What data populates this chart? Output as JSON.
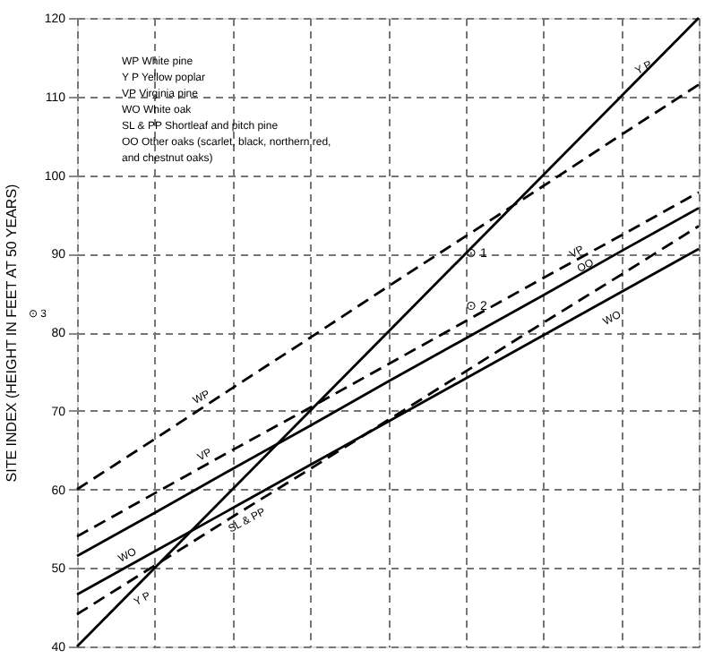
{
  "chart_data": {
    "type": "line",
    "ylabel": "SITE INDEX (HEIGHT IN FEET AT 50 YEARS)",
    "categories": [
      null,
      null,
      null,
      null,
      null,
      null,
      null,
      null,
      null
    ],
    "ylim": [
      40,
      120
    ],
    "yticks": [
      40,
      50,
      60,
      70,
      80,
      90,
      100,
      110,
      120
    ],
    "tick_labels": "y",
    "grid": true,
    "marker": "none",
    "series": [
      {
        "name": "WP",
        "color": "#000000",
        "line_style": "dashed",
        "values": [
          60,
          66.4,
          72.9,
          79.3,
          85.8,
          92.2,
          98.6,
          105.1,
          111.5
        ]
      },
      {
        "name": "Y P",
        "color": "#000000",
        "line_style": "solid",
        "values": [
          40,
          50,
          60,
          70,
          80,
          90,
          100,
          110,
          120
        ]
      },
      {
        "name": "VP",
        "color": "#000000",
        "line_style": "dashed",
        "values": [
          54,
          59.5,
          65,
          70.4,
          75.9,
          81.4,
          86.9,
          92.3,
          97.8
        ]
      },
      {
        "name": "OO",
        "color": "#000000",
        "line_style": "solid",
        "values": [
          51.5,
          57,
          62.6,
          68.1,
          73.7,
          79.2,
          84.7,
          90.3,
          95.8
        ]
      },
      {
        "name": "SL & PP",
        "color": "#000000",
        "line_style": "dashed",
        "values": [
          44.1,
          50.3,
          56.5,
          62.6,
          68.8,
          75,
          81.2,
          87.3,
          93.5
        ]
      },
      {
        "name": "WO",
        "color": "#000000",
        "line_style": "solid",
        "values": [
          46.6,
          52.1,
          57.6,
          63.1,
          68.6,
          74.1,
          79.6,
          85.1,
          90.6
        ]
      }
    ],
    "annotations": [
      "WP   White pine",
      "Y P   Yellow poplar",
      "VP   Virginia pine",
      "WO   White oak",
      "SL & PP   Shortleaf and pitch pine",
      "OO   Other oaks (scarlet, black, northern red, and chestnut oaks)",
      {
        "text": "⊙ 1",
        "y": 90
      },
      {
        "text": "⊙ 2",
        "y": 82.6
      },
      "⊙ 3"
    ]
  }
}
